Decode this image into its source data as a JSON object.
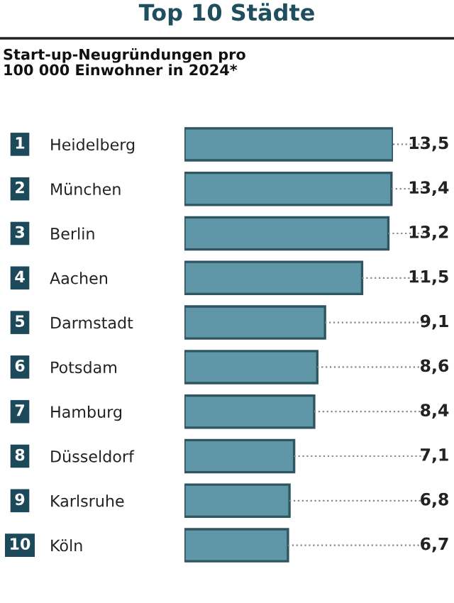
{
  "chart_data": {
    "type": "bar",
    "orientation": "horizontal",
    "title": "Top 10 Städte",
    "subtitle": "Start-up-Neugründungen pro\n100 000 Einwohner in 2024*",
    "categories": [
      "Heidelberg",
      "München",
      "Berlin",
      "Aachen",
      "Darmstadt",
      "Potsdam",
      "Hamburg",
      "Düsseldorf",
      "Karlsruhe",
      "Köln"
    ],
    "values": [
      13.5,
      13.4,
      13.2,
      11.5,
      9.1,
      8.6,
      8.4,
      7.1,
      6.8,
      6.7
    ],
    "value_labels": [
      "13,5",
      "13,4",
      "13,2",
      "11,5",
      "9,1",
      "8,6",
      "8,4",
      "7,1",
      "6,8",
      "6,7"
    ],
    "annotations": [
      "1",
      "2",
      "3",
      "4",
      "5",
      "6",
      "7",
      "8",
      "9",
      "10"
    ],
    "color": "#5f97a8",
    "tick_labels": "y",
    "grid": false
  }
}
